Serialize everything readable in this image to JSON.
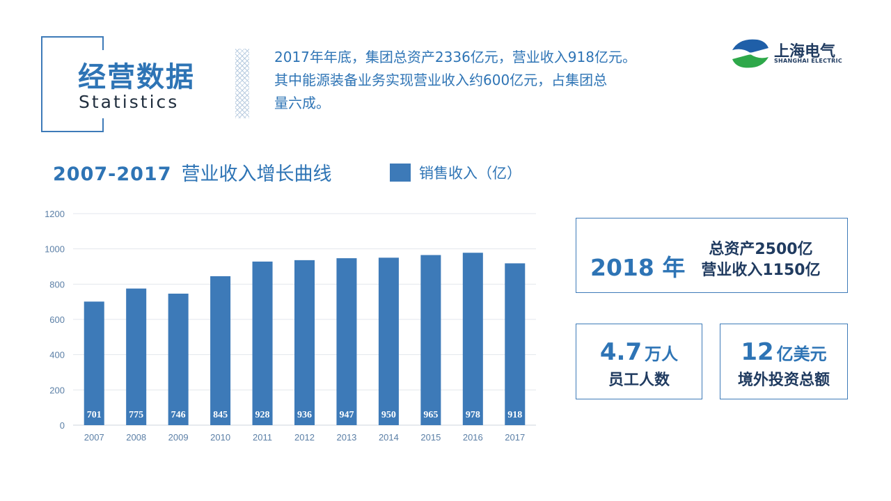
{
  "header": {
    "title_cn": "经营数据",
    "title_en": "Statistics"
  },
  "intro": {
    "line1": "2017年年底，集团总资产2336亿元，营业收入918亿元。",
    "line2": "其中能源装备业务实现营业收入约600亿元，占集团总",
    "line3": "量六成。"
  },
  "logo": {
    "cn": "上海电气",
    "en": "SHANGHAI ELECTRIC"
  },
  "chart_heading": {
    "years": "2007-2017",
    "text": "营业收入增长曲线"
  },
  "colors": {
    "accent": "#2e74b5",
    "bar": "#3d7ab8",
    "dark": "#1f3a5f"
  },
  "chart_data": {
    "type": "bar",
    "title": "2007-2017 营业收入增长曲线",
    "categories": [
      "2007",
      "2008",
      "2009",
      "2010",
      "2011",
      "2012",
      "2013",
      "2014",
      "2015",
      "2016",
      "2017"
    ],
    "series": [
      {
        "name": "销售收入（亿）",
        "values": [
          701,
          775,
          746,
          845,
          928,
          936,
          947,
          950,
          965,
          978,
          918
        ]
      }
    ],
    "y_ticks": [
      0,
      200,
      400,
      600,
      800,
      1000,
      1200
    ],
    "ylim": [
      0,
      1200
    ],
    "grid": true,
    "legend_position": "top",
    "data_labels": true
  },
  "stats": {
    "y2018": {
      "year_label": "2018 年",
      "line1": "总资产2500亿",
      "line2": "营业收入1150亿"
    },
    "staff": {
      "number": "4.7",
      "unit": "万人",
      "label": "员工人数"
    },
    "invest": {
      "number": "12",
      "unit": "亿美元",
      "label": "境外投资总额"
    }
  }
}
